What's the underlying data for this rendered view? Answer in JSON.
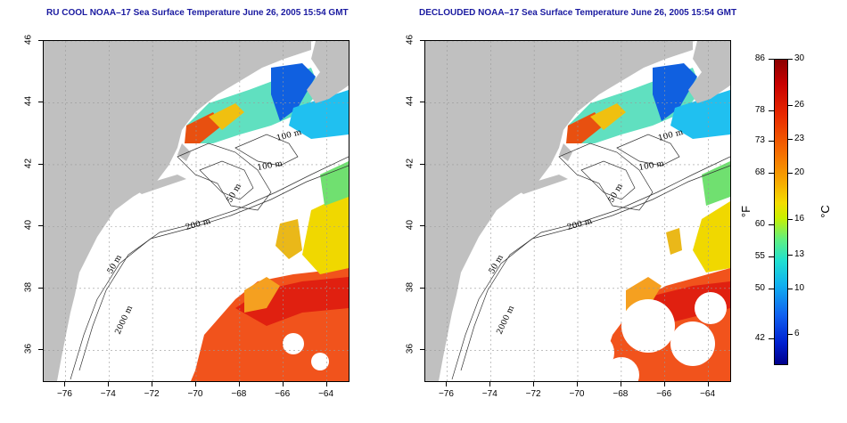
{
  "panels": [
    {
      "title": "RU COOL NOAA–17 Sea Surface Temperature June 26, 2005 15:54 GMT",
      "mode": "cloudy"
    },
    {
      "title": "DECLOUDED NOAA–17 Sea Surface Temperature June 26, 2005 15:54 GMT",
      "mode": "declouded"
    }
  ],
  "axes": {
    "lat_ticks": [
      "46",
      "44",
      "42",
      "40",
      "38",
      "36"
    ],
    "lon_ticks": [
      "−76",
      "−74",
      "−72",
      "−70",
      "−68",
      "−66",
      "−64"
    ],
    "lat_range": [
      35,
      46
    ],
    "lon_range": [
      -77,
      -63
    ]
  },
  "contours": {
    "labels": [
      "100 m",
      "100 m",
      "50 m",
      "200 m",
      "50 m",
      "2000 m"
    ]
  },
  "colorbar": {
    "fahrenheit_ticks": [
      "86",
      "78",
      "73",
      "68",
      "60",
      "55",
      "50",
      "42"
    ],
    "celsius_ticks": [
      "30",
      "26",
      "23",
      "20",
      "16",
      "13",
      "10",
      "6"
    ],
    "f_unit": "°F",
    "c_unit": "°C"
  },
  "colors": {
    "land": "#c0c0c0",
    "water_nodata": "#ffffff",
    "grid": "#999999",
    "title": "#1a1aa0"
  }
}
